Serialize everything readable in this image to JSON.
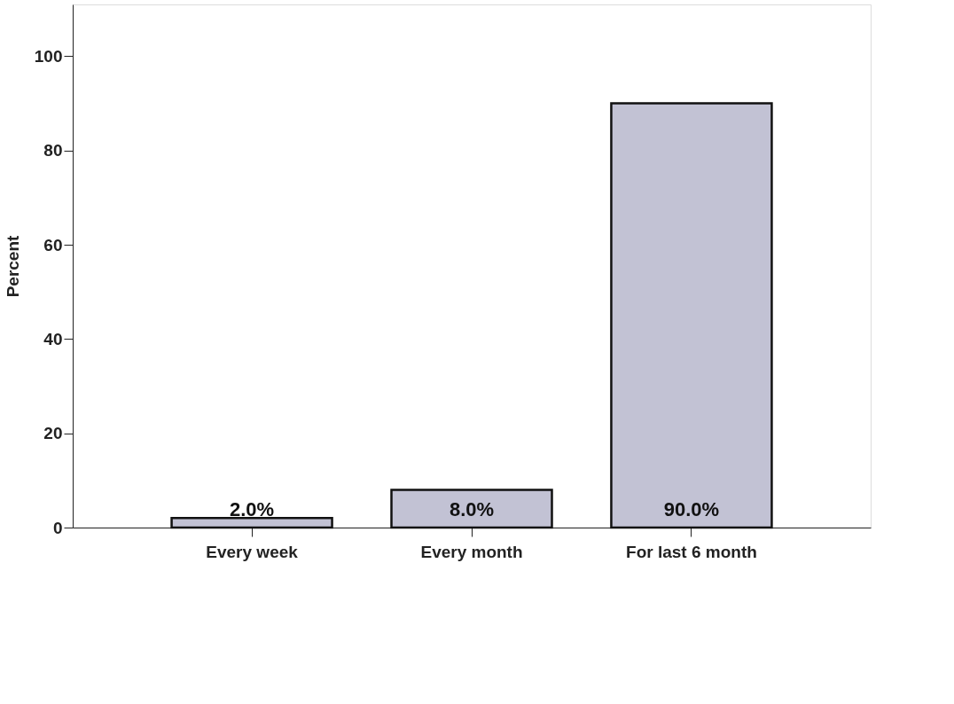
{
  "chart_data": {
    "type": "bar",
    "ylabel": "Percent",
    "categories": [
      "Every week",
      "Every month",
      "For last 6 month"
    ],
    "values": [
      2.0,
      8.0,
      90.0
    ],
    "value_labels": [
      "2.0%",
      "8.0%",
      "90.0%"
    ],
    "color": "#c2c2d4",
    "ylim": [
      0,
      111
    ],
    "yticks": [
      0,
      20,
      40,
      60,
      80,
      100
    ],
    "grid": false
  }
}
